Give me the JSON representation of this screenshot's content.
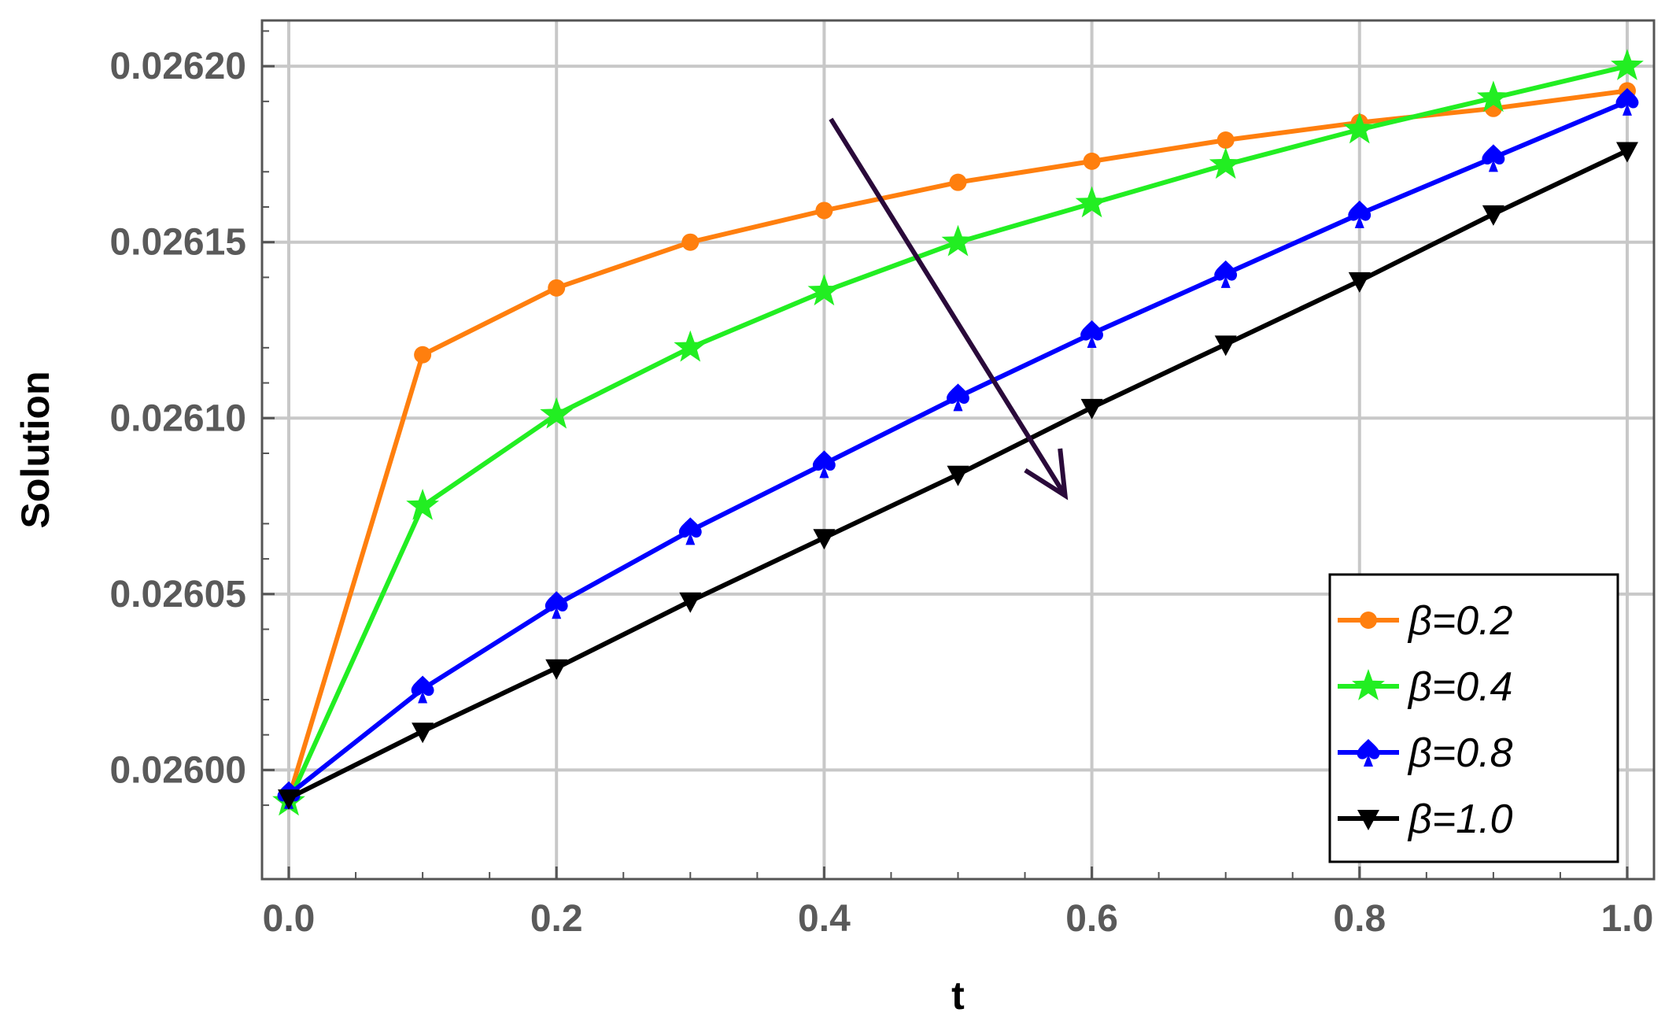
{
  "chart_data": {
    "type": "line",
    "title": "",
    "xlabel": "t",
    "ylabel": "Solution",
    "xlim": [
      -0.02,
      1.02
    ],
    "ylim": [
      0.025969,
      0.026213
    ],
    "x_ticks": [
      "0.0",
      "0.2",
      "0.4",
      "0.6",
      "0.8",
      "1.0"
    ],
    "y_ticks": [
      "0.02600",
      "0.02605",
      "0.02610",
      "0.02615",
      "0.02620"
    ],
    "grid": true,
    "legend_position": "bottom-right",
    "x": [
      0.0,
      0.1,
      0.2,
      0.3,
      0.4,
      0.5,
      0.6,
      0.7,
      0.8,
      0.9,
      1.0
    ],
    "series": [
      {
        "name": "β=0.2",
        "color": "#ff7f0e",
        "marker": "circle",
        "values": [
          0.025992,
          0.026118,
          0.026137,
          0.02615,
          0.026159,
          0.026167,
          0.026173,
          0.026179,
          0.026184,
          0.026188,
          0.026193
        ]
      },
      {
        "name": "β=0.4",
        "color": "#22ee22",
        "marker": "star",
        "values": [
          0.025991,
          0.026075,
          0.026101,
          0.02612,
          0.026136,
          0.02615,
          0.026161,
          0.026172,
          0.026182,
          0.026191,
          0.0262
        ]
      },
      {
        "name": "β=0.8",
        "color": "#0000ff",
        "marker": "spade",
        "values": [
          0.025993,
          0.026023,
          0.026047,
          0.026068,
          0.026087,
          0.026106,
          0.026124,
          0.026141,
          0.026158,
          0.026174,
          0.02619
        ]
      },
      {
        "name": "β=1.0",
        "color": "#000000",
        "marker": "triangle-down",
        "values": [
          0.025992,
          0.026011,
          0.026029,
          0.026048,
          0.026066,
          0.026084,
          0.026103,
          0.026121,
          0.026139,
          0.026158,
          0.026176
        ]
      }
    ],
    "annotation": {
      "type": "arrow",
      "color": "#2a0a3a",
      "from": [
        0.405,
        0.026185
      ],
      "to": [
        0.58,
        0.026078
      ]
    }
  }
}
